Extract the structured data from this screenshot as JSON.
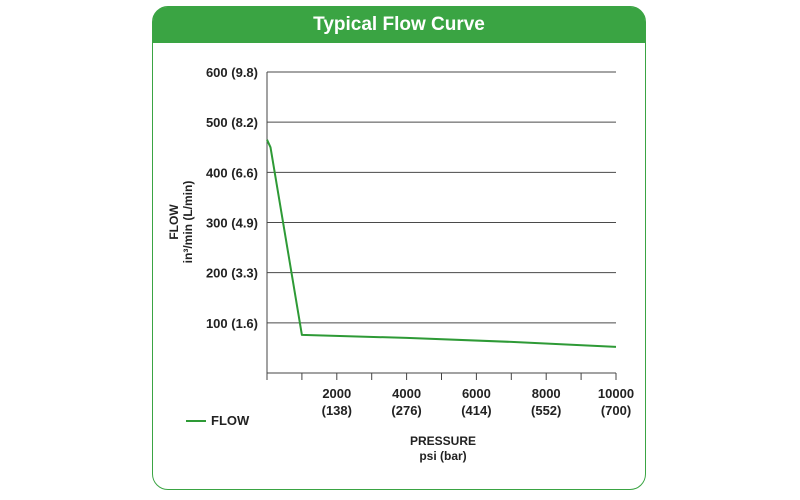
{
  "chart_data": {
    "type": "line",
    "title": "Typical Flow Curve",
    "xlabel": "PRESSURE",
    "xlabel_units": "psi (bar)",
    "ylabel": "FLOW",
    "ylabel_units": "in³/min (L/min)",
    "xlim": [
      0,
      10000
    ],
    "ylim": [
      0,
      600
    ],
    "x_ticks": [
      {
        "value": 2000,
        "line1": "2000",
        "line2": "(138)"
      },
      {
        "value": 4000,
        "line1": "4000",
        "line2": "(276)"
      },
      {
        "value": 6000,
        "line1": "6000",
        "line2": "(414)"
      },
      {
        "value": 8000,
        "line1": "8000",
        "line2": "(552)"
      },
      {
        "value": 10000,
        "line1": "10000",
        "line2": "(700)"
      }
    ],
    "y_ticks": [
      {
        "value": 100,
        "label": "100 (1.6)"
      },
      {
        "value": 200,
        "label": "200 (3.3)"
      },
      {
        "value": 300,
        "label": "300 (4.9)"
      },
      {
        "value": 400,
        "label": "400 (6.6)"
      },
      {
        "value": 500,
        "label": "500 (8.2)"
      },
      {
        "value": 600,
        "label": "600 (9.8)"
      }
    ],
    "grid": true,
    "legend_position": "bottom-left",
    "series": [
      {
        "name": "FLOW",
        "color": "#2e9a36",
        "x": [
          0,
          100,
          1000,
          4000,
          7000,
          10000
        ],
        "y": [
          465,
          450,
          76,
          70,
          62,
          52
        ]
      }
    ]
  }
}
